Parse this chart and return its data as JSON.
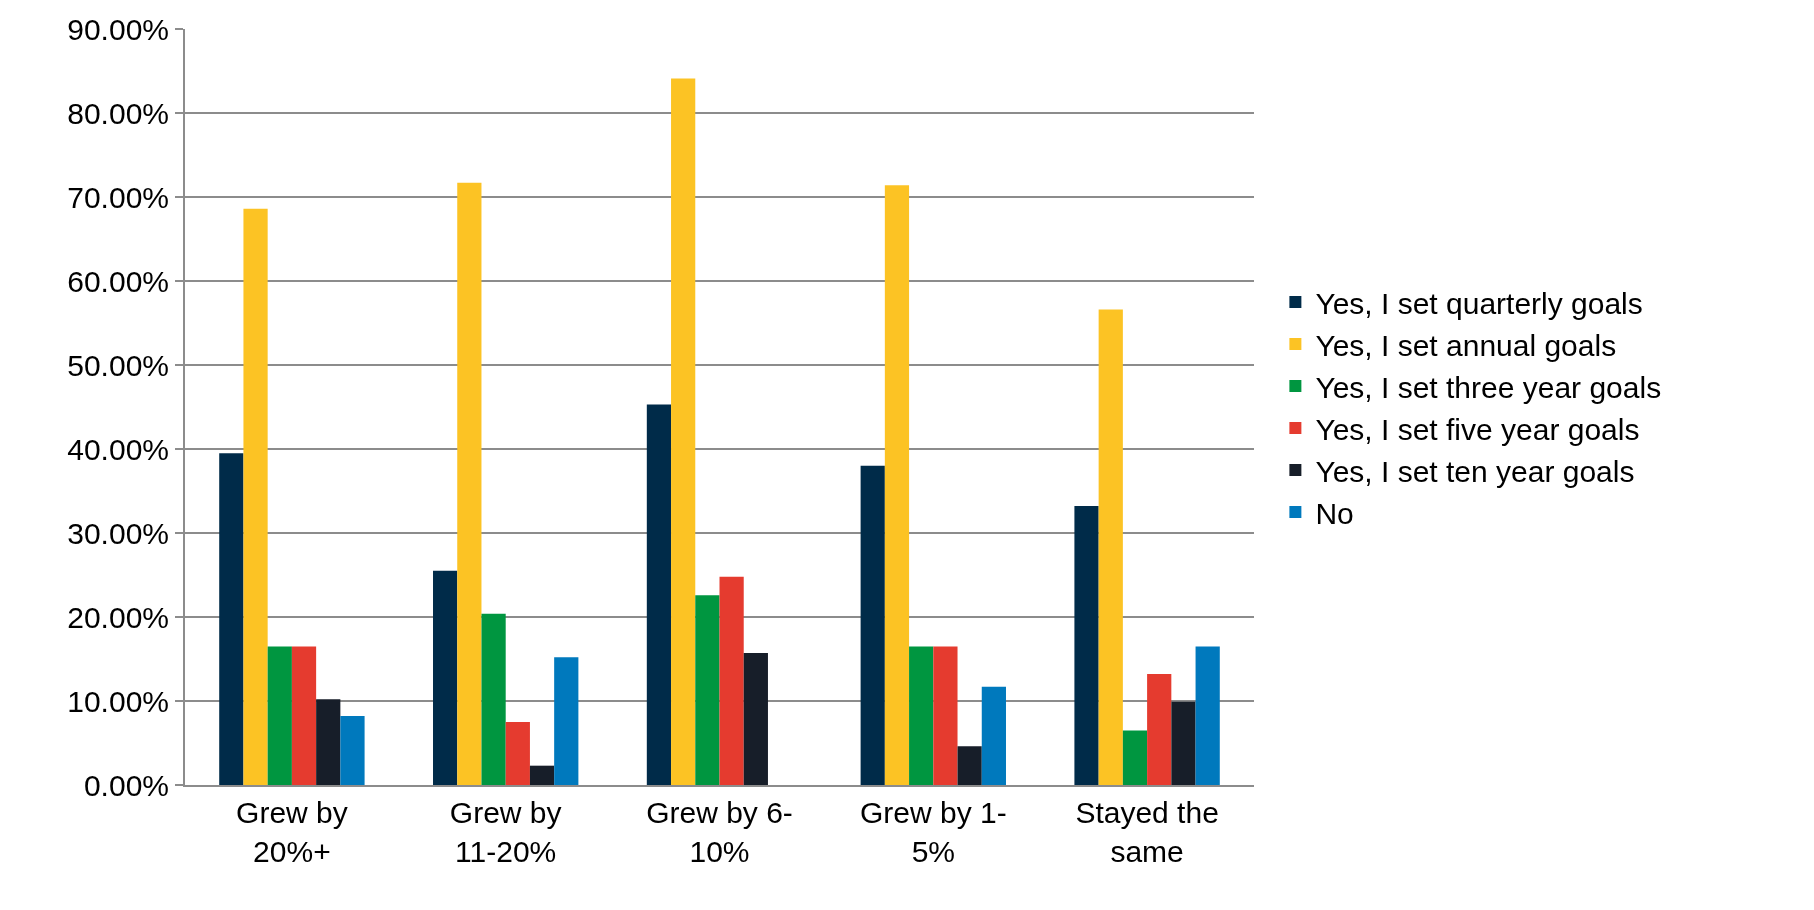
{
  "chart_data": {
    "type": "bar",
    "categories": [
      "Grew by\n20%+",
      "Grew by\n11-20%",
      "Grew by 6-\n10%",
      "Grew by 1-\n5%",
      "Stayed the\nsame"
    ],
    "series": [
      {
        "name": "Yes, I set quarterly goals",
        "color": "#002b49",
        "values": [
          39.5,
          25.5,
          45.3,
          38.0,
          33.2
        ]
      },
      {
        "name": "Yes, I set annual goals",
        "color": "#fcc324",
        "values": [
          68.6,
          71.7,
          84.1,
          71.4,
          56.6
        ]
      },
      {
        "name": "Yes, I set three year goals",
        "color": "#009640",
        "values": [
          16.5,
          20.4,
          22.6,
          16.5,
          6.5
        ]
      },
      {
        "name": "Yes, I set five year goals",
        "color": "#e53b2f",
        "values": [
          16.5,
          7.5,
          24.8,
          16.5,
          13.2
        ]
      },
      {
        "name": "Yes, I set ten year goals",
        "color": "#171e29",
        "values": [
          10.2,
          2.3,
          15.7,
          4.6,
          9.9
        ]
      },
      {
        "name": "No",
        "color": "#0079bd",
        "values": [
          8.2,
          15.2,
          0,
          11.7,
          16.5
        ]
      }
    ],
    "ylim": [
      0,
      90
    ],
    "yticks": [
      {
        "value": 0,
        "label": "0.00%"
      },
      {
        "value": 10,
        "label": "10.00%"
      },
      {
        "value": 20,
        "label": "20.00%"
      },
      {
        "value": 30,
        "label": "30.00%"
      },
      {
        "value": 40,
        "label": "40.00%"
      },
      {
        "value": 50,
        "label": "50.00%"
      },
      {
        "value": 60,
        "label": "60.00%"
      },
      {
        "value": 70,
        "label": "70.00%"
      },
      {
        "value": 80,
        "label": "80.00%"
      },
      {
        "value": 90,
        "label": "90.00%"
      }
    ],
    "grid": "y",
    "legend": "right"
  }
}
